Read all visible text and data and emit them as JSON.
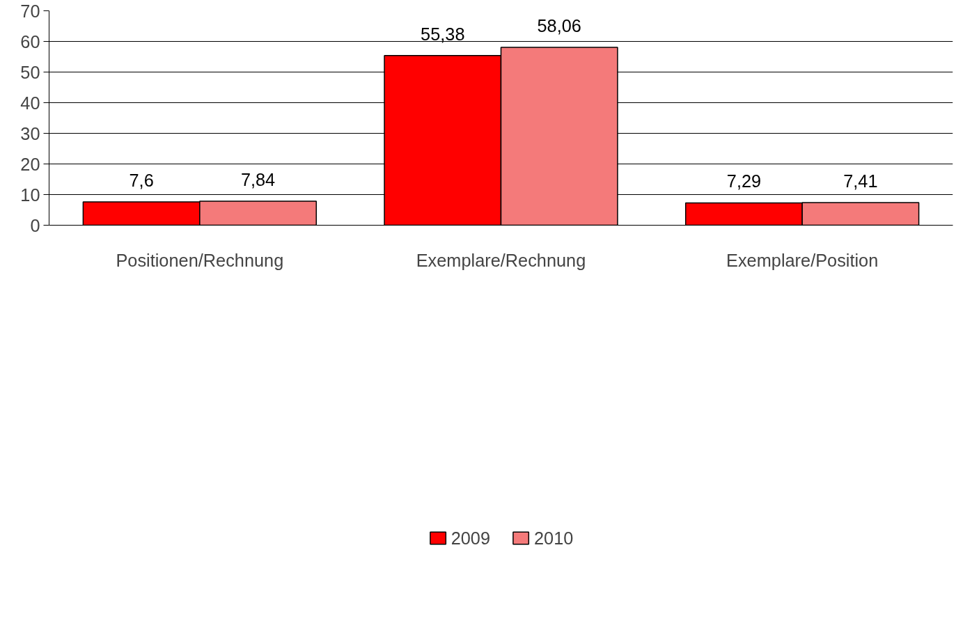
{
  "chart_data": {
    "type": "bar",
    "categories": [
      "Positionen/Rechnung",
      "Exemplare/Rechnung",
      "Exemplare/Position"
    ],
    "series": [
      {
        "name": "2009",
        "color": "#ff0000",
        "values": [
          7.6,
          55.38,
          7.29
        ],
        "value_labels": [
          "7,6",
          "55,38",
          "7,29"
        ]
      },
      {
        "name": "2010",
        "color": "#f47a7a",
        "values": [
          7.84,
          58.06,
          7.41
        ],
        "value_labels": [
          "7,84",
          "58,06",
          "7,41"
        ]
      }
    ],
    "ylim": [
      0,
      70
    ],
    "yticks": [
      0,
      10,
      20,
      30,
      40,
      50,
      60,
      70
    ],
    "grid": "y",
    "legend": "bottom"
  }
}
